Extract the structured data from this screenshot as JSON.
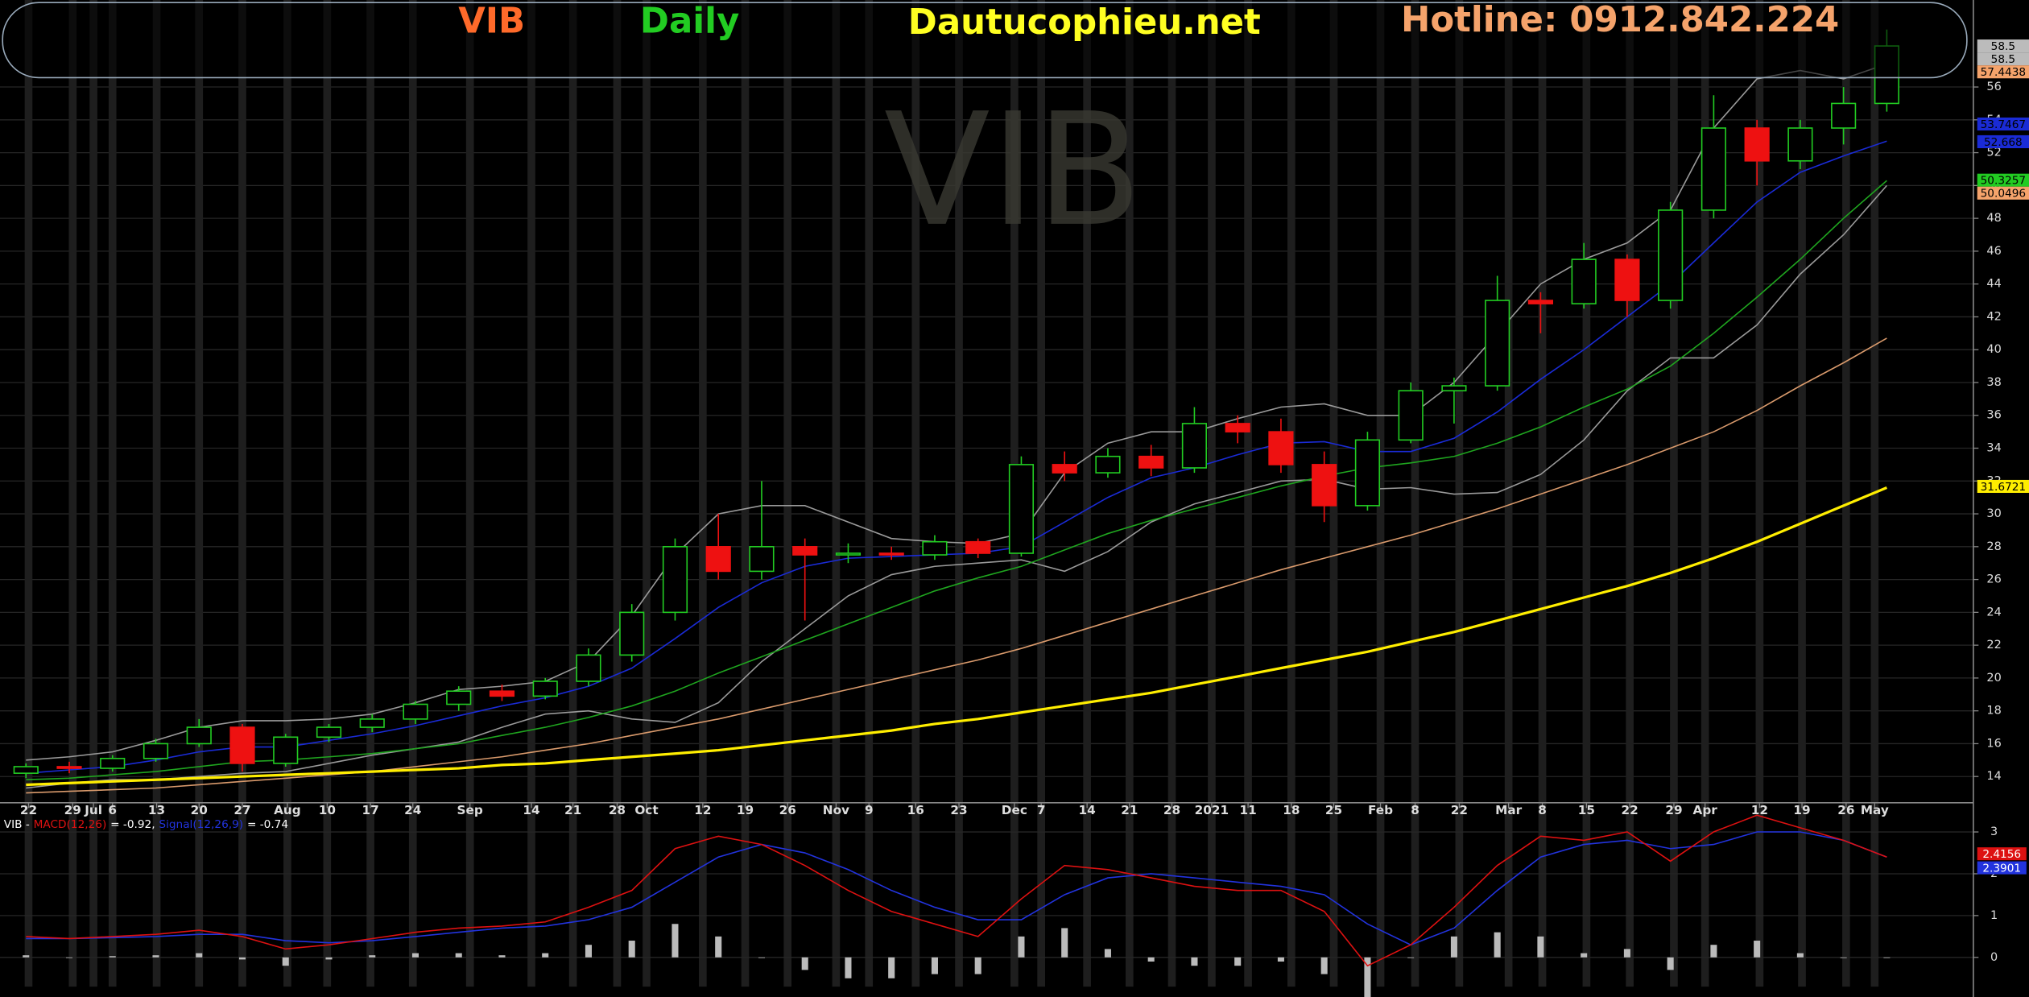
{
  "header": {
    "symbol": "VIB",
    "period": "Daily",
    "site": "Dautucophieu.net",
    "hotline": "Hotline: 0912.842.224",
    "watermark": "VIB"
  },
  "chart_data": [
    {
      "type": "candlestick",
      "x": [
        3,
        8,
        13,
        18,
        23,
        28,
        33,
        38,
        43,
        48,
        53,
        58,
        63,
        68,
        73,
        78,
        83,
        88,
        93,
        98,
        103,
        108,
        113,
        118,
        123,
        128,
        133,
        138,
        143,
        148,
        153,
        158,
        163,
        168,
        173,
        178,
        183,
        188,
        193,
        198,
        203,
        208,
        213,
        218
      ],
      "open": [
        14.2,
        14.6,
        14.5,
        15.1,
        16.0,
        17.0,
        14.8,
        16.4,
        17.0,
        17.5,
        18.4,
        19.2,
        18.9,
        19.8,
        21.4,
        24.0,
        28.0,
        26.5,
        28.0,
        27.5,
        27.6,
        27.5,
        28.3,
        27.6,
        33.0,
        32.5,
        33.5,
        32.8,
        35.5,
        35.0,
        33.0,
        30.5,
        34.5,
        37.5,
        37.8,
        43.0,
        42.8,
        45.5,
        43.0,
        48.5,
        53.5,
        51.5,
        53.5,
        55.0
      ],
      "high": [
        14.8,
        14.9,
        15.3,
        16.3,
        17.5,
        17.2,
        16.6,
        17.2,
        17.8,
        18.6,
        19.5,
        19.6,
        20.0,
        21.8,
        24.5,
        28.5,
        30.0,
        32.0,
        28.5,
        28.2,
        28.0,
        28.7,
        28.5,
        33.5,
        33.8,
        34.0,
        34.2,
        36.5,
        36.0,
        35.8,
        33.8,
        35.0,
        38.0,
        38.3,
        44.5,
        43.5,
        46.5,
        45.8,
        49.0,
        55.5,
        54.0,
        54.0,
        56.0,
        59.5
      ],
      "low": [
        13.9,
        14.2,
        14.3,
        14.9,
        15.8,
        14.3,
        14.6,
        16.1,
        16.7,
        17.2,
        18.0,
        18.6,
        18.7,
        19.5,
        21.0,
        23.5,
        26.0,
        26.0,
        23.5,
        27.0,
        27.2,
        27.2,
        27.3,
        27.4,
        32.0,
        32.2,
        32.3,
        32.5,
        34.3,
        32.5,
        29.5,
        30.2,
        34.3,
        35.5,
        37.5,
        41.0,
        42.5,
        42.0,
        42.5,
        48.0,
        50.0,
        51.0,
        52.5,
        54.5
      ],
      "close": [
        14.6,
        14.5,
        15.1,
        16.0,
        17.0,
        14.8,
        16.4,
        17.0,
        17.5,
        18.4,
        19.2,
        18.9,
        19.8,
        21.4,
        24.0,
        28.0,
        26.5,
        28.0,
        27.5,
        27.6,
        27.5,
        28.3,
        27.6,
        33.0,
        32.5,
        33.5,
        32.8,
        35.5,
        35.0,
        33.0,
        30.5,
        34.5,
        37.5,
        37.8,
        43.0,
        42.8,
        45.5,
        43.0,
        48.5,
        53.5,
        51.5,
        53.5,
        55.0,
        58.5
      ],
      "up_color": "#22cc22",
      "down_color": "#ee1111",
      "series": [
        {
          "color": "#9a9a9a",
          "values": [
            15,
            15.2,
            15.5,
            16.2,
            17.0,
            17.4,
            17.4,
            17.5,
            17.8,
            18.5,
            19.3,
            19.5,
            19.8,
            21.0,
            23.8,
            27.5,
            30.0,
            30.5,
            30.5,
            29.5,
            28.5,
            28.3,
            28.2,
            28.8,
            32.5,
            34.3,
            35.0,
            35.0,
            35.8,
            36.5,
            36.7,
            36.0,
            36.0,
            38.0,
            41.0,
            44.0,
            45.5,
            46.5,
            48.5,
            53.5,
            56.5,
            57.0,
            56.5,
            57.4
          ]
        },
        {
          "color": "#9a9a9a",
          "values": [
            13.3,
            13.6,
            13.8,
            13.8,
            14.0,
            14.2,
            14.3,
            14.8,
            15.3,
            15.7,
            16.1,
            17.0,
            17.8,
            18.0,
            17.5,
            17.3,
            18.5,
            21.0,
            23.0,
            25.0,
            26.3,
            26.8,
            27.0,
            27.2,
            26.5,
            27.7,
            29.5,
            30.6,
            31.3,
            32.0,
            32.1,
            31.5,
            31.6,
            31.2,
            31.3,
            32.4,
            34.5,
            37.5,
            39.5,
            39.5,
            41.5,
            44.6,
            47.0,
            50.0
          ]
        },
        {
          "color": "#1a2bd6",
          "values": [
            14.2,
            14.4,
            14.6,
            15.0,
            15.5,
            15.8,
            15.8,
            16.2,
            16.6,
            17.1,
            17.7,
            18.3,
            18.8,
            19.5,
            20.6,
            22.4,
            24.3,
            25.8,
            26.8,
            27.3,
            27.4,
            27.5,
            27.6,
            28.0,
            29.5,
            31.0,
            32.2,
            32.8,
            33.6,
            34.3,
            34.4,
            33.8,
            33.8,
            34.6,
            36.2,
            38.2,
            40.0,
            42.0,
            44.0,
            46.5,
            49.0,
            50.8,
            51.8,
            52.7
          ]
        },
        {
          "color": "#1fa51f",
          "values": [
            13.8,
            13.9,
            14.1,
            14.3,
            14.6,
            14.9,
            15.0,
            15.2,
            15.4,
            15.7,
            16.0,
            16.5,
            17.0,
            17.6,
            18.3,
            19.2,
            20.3,
            21.3,
            22.3,
            23.3,
            24.3,
            25.3,
            26.1,
            26.8,
            27.8,
            28.8,
            29.6,
            30.3,
            31.0,
            31.7,
            32.3,
            32.8,
            33.1,
            33.5,
            34.3,
            35.3,
            36.5,
            37.6,
            39.0,
            41.0,
            43.2,
            45.5,
            48.0,
            50.3
          ]
        },
        {
          "color": "#d99a6c",
          "values": [
            13.0,
            13.1,
            13.2,
            13.3,
            13.5,
            13.7,
            13.9,
            14.1,
            14.3,
            14.6,
            14.9,
            15.2,
            15.6,
            16.0,
            16.5,
            17.0,
            17.5,
            18.1,
            18.7,
            19.3,
            19.9,
            20.5,
            21.1,
            21.8,
            22.6,
            23.4,
            24.2,
            25.0,
            25.8,
            26.6,
            27.3,
            28.0,
            28.7,
            29.5,
            30.3,
            31.2,
            32.1,
            33.0,
            34.0,
            35.0,
            36.3,
            37.8,
            39.2,
            40.7
          ]
        },
        {
          "color": "#ffee00",
          "values": [
            13.5,
            13.6,
            13.7,
            13.8,
            13.9,
            14.0,
            14.1,
            14.2,
            14.3,
            14.4,
            14.5,
            14.7,
            14.8,
            15.0,
            15.2,
            15.4,
            15.6,
            15.9,
            16.2,
            16.5,
            16.8,
            17.2,
            17.5,
            17.9,
            18.3,
            18.7,
            19.1,
            19.6,
            20.1,
            20.6,
            21.1,
            21.6,
            22.2,
            22.8,
            23.5,
            24.2,
            24.9,
            25.6,
            26.4,
            27.3,
            28.3,
            29.4,
            30.5,
            31.6
          ]
        }
      ],
      "xlim": [
        0,
        228
      ],
      "xticks": [
        {
          "value": 3.3,
          "label": "22"
        },
        {
          "value": 8.4,
          "label": "29"
        },
        {
          "value": 10.8,
          "label": "Jul"
        },
        {
          "value": 13,
          "label": "6"
        },
        {
          "value": 18.1,
          "label": "13"
        },
        {
          "value": 23,
          "label": "20"
        },
        {
          "value": 28,
          "label": "27"
        },
        {
          "value": 33.2,
          "label": "Aug"
        },
        {
          "value": 37.8,
          "label": "10"
        },
        {
          "value": 42.8,
          "label": "17"
        },
        {
          "value": 47.7,
          "label": "24"
        },
        {
          "value": 54.3,
          "label": "Sep"
        },
        {
          "value": 61.4,
          "label": "14"
        },
        {
          "value": 66.2,
          "label": "21"
        },
        {
          "value": 71.3,
          "label": "28"
        },
        {
          "value": 74.7,
          "label": "Oct"
        },
        {
          "value": 81.2,
          "label": "12"
        },
        {
          "value": 86.1,
          "label": "19"
        },
        {
          "value": 91,
          "label": "26"
        },
        {
          "value": 96.6,
          "label": "Nov"
        },
        {
          "value": 100.4,
          "label": "9"
        },
        {
          "value": 105.8,
          "label": "16"
        },
        {
          "value": 110.8,
          "label": "23"
        },
        {
          "value": 117.2,
          "label": "Dec"
        },
        {
          "value": 120.3,
          "label": "7"
        },
        {
          "value": 125.6,
          "label": "14"
        },
        {
          "value": 130.5,
          "label": "21"
        },
        {
          "value": 135.4,
          "label": "28"
        },
        {
          "value": 140,
          "label": "2021"
        },
        {
          "value": 144.2,
          "label": "11"
        },
        {
          "value": 149.2,
          "label": "18"
        },
        {
          "value": 154.1,
          "label": "25"
        },
        {
          "value": 159.5,
          "label": "Feb"
        },
        {
          "value": 163.5,
          "label": "8"
        },
        {
          "value": 168.6,
          "label": "22"
        },
        {
          "value": 174.3,
          "label": "Mar"
        },
        {
          "value": 178.2,
          "label": "8"
        },
        {
          "value": 183.3,
          "label": "15"
        },
        {
          "value": 188.3,
          "label": "22"
        },
        {
          "value": 193.4,
          "label": "29"
        },
        {
          "value": 197,
          "label": "Apr"
        },
        {
          "value": 203.3,
          "label": "12"
        },
        {
          "value": 208.2,
          "label": "19"
        },
        {
          "value": 213.3,
          "label": "26"
        },
        {
          "value": 216.6,
          "label": "May"
        }
      ],
      "ylim": [
        12.4,
        61.3
      ],
      "yticks": [
        14,
        16,
        18,
        20,
        22,
        24,
        26,
        28,
        30,
        32,
        34,
        36,
        38,
        40,
        42,
        44,
        46,
        48,
        50,
        52,
        54,
        56
      ],
      "price_labels": [
        58.5,
        58.5,
        57.4438,
        53.7467,
        52.668,
        50.3257,
        50.0496,
        31.6721
      ],
      "price_label_colors": [
        "#bbbbbb",
        "#bbbbbb",
        "#f5a36b",
        "#1a2bd6",
        "#1a2bd6",
        "#22cc22",
        "#f5a36b",
        "#ffee00"
      ],
      "grid": true
    },
    {
      "type": "line",
      "legend": [
        "VIB -",
        "MACD(12,26)",
        "= -0.92,",
        "Signal(12,26,9)",
        "= -0.74"
      ],
      "legend_colors": [
        "#ffffff",
        "#dd1111",
        "#ffffff",
        "#2233dd",
        "#ffffff"
      ],
      "x": [
        3,
        8,
        13,
        18,
        23,
        28,
        33,
        38,
        43,
        48,
        53,
        58,
        63,
        68,
        73,
        78,
        83,
        88,
        93,
        98,
        103,
        108,
        113,
        118,
        123,
        128,
        133,
        138,
        143,
        148,
        153,
        158,
        163,
        168,
        173,
        178,
        183,
        188,
        193,
        198,
        203,
        208,
        213,
        218
      ],
      "histogram": [
        0.05,
        0,
        0.03,
        0.05,
        0.1,
        -0.05,
        -0.2,
        -0.05,
        0.05,
        0.1,
        0.1,
        0.05,
        0.1,
        0.3,
        0.4,
        0.8,
        0.5,
        0,
        -0.3,
        -0.5,
        -0.5,
        -0.4,
        -0.4,
        0.5,
        0.7,
        0.2,
        -0.1,
        -0.2,
        -0.2,
        -0.1,
        -0.4,
        -1.0,
        0,
        0.5,
        0.6,
        0.5,
        0.1,
        0.2,
        -0.3,
        0.3,
        0.4,
        0.1,
        0,
        0
      ],
      "histogram_color": "#bbbbbb",
      "series": [
        {
          "color": "#2233dd",
          "values": [
            0.45,
            0.45,
            0.47,
            0.5,
            0.55,
            0.55,
            0.4,
            0.35,
            0.4,
            0.5,
            0.6,
            0.7,
            0.75,
            0.9,
            1.2,
            1.8,
            2.4,
            2.7,
            2.5,
            2.1,
            1.6,
            1.2,
            0.9,
            0.9,
            1.5,
            1.9,
            2.0,
            1.9,
            1.8,
            1.7,
            1.5,
            0.8,
            0.3,
            0.7,
            1.6,
            2.4,
            2.7,
            2.8,
            2.6,
            2.7,
            3.0,
            3.0,
            2.8,
            2.4
          ]
        },
        {
          "color": "#dd1111",
          "values": [
            0.5,
            0.45,
            0.5,
            0.55,
            0.65,
            0.5,
            0.2,
            0.3,
            0.45,
            0.6,
            0.7,
            0.75,
            0.85,
            1.2,
            1.6,
            2.6,
            2.9,
            2.7,
            2.2,
            1.6,
            1.1,
            0.8,
            0.5,
            1.4,
            2.2,
            2.1,
            1.9,
            1.7,
            1.6,
            1.6,
            1.1,
            -0.2,
            0.3,
            1.2,
            2.2,
            2.9,
            2.8,
            3.0,
            2.3,
            3.0,
            3.4,
            3.1,
            2.8,
            2.4
          ]
        }
      ],
      "xlim": [
        0,
        228
      ],
      "ylim": [
        -0.7,
        3.45
      ],
      "yticks": [
        0,
        1,
        2,
        3
      ],
      "end_labels": [
        2.4156,
        2.3901
      ],
      "end_label_colors": [
        "#dd1111",
        "#2233dd"
      ],
      "grid": true
    }
  ]
}
